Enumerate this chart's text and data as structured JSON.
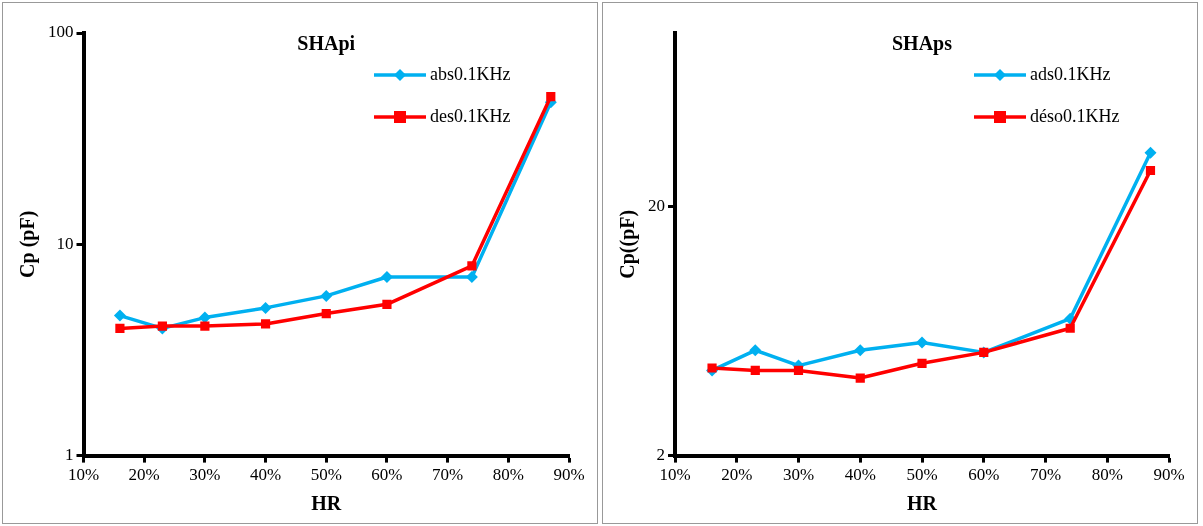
{
  "chart_data": [
    {
      "type": "line",
      "title": "SHApi",
      "xlabel": "HR",
      "ylabel": "Cp (pF)",
      "log": "y",
      "legend": "top right",
      "grid": false,
      "x": [
        16,
        23,
        30,
        40,
        50,
        60,
        74,
        87
      ],
      "xlim": [
        10,
        90
      ],
      "xticks": [
        {
          "value": 10,
          "label": "10%"
        },
        {
          "value": 20,
          "label": "20%"
        },
        {
          "value": 30,
          "label": "30%"
        },
        {
          "value": 40,
          "label": "40%"
        },
        {
          "value": 50,
          "label": "50%"
        },
        {
          "value": 60,
          "label": "60%"
        },
        {
          "value": 70,
          "label": "70%"
        },
        {
          "value": 80,
          "label": "80%"
        },
        {
          "value": 90,
          "label": "90%"
        }
      ],
      "ylim": [
        1,
        100
      ],
      "yticks": [
        1,
        10,
        100
      ],
      "series": [
        {
          "name": "abs0.1KHz",
          "color": "#00b0f0",
          "marker": "diamond",
          "values": [
            4.6,
            4.0,
            4.5,
            5.0,
            5.7,
            7.0,
            7.0,
            47
          ]
        },
        {
          "name": "des0.1KHz",
          "color": "#ff0000",
          "marker": "square",
          "values": [
            4.0,
            4.1,
            4.1,
            4.2,
            4.7,
            5.2,
            7.9,
            50
          ]
        }
      ]
    },
    {
      "type": "line",
      "title": "SHAps",
      "xlabel": "HR",
      "ylabel": "Cp((pF)",
      "log": "y",
      "legend": "top right",
      "grid": false,
      "x": [
        16,
        23,
        30,
        40,
        50,
        60,
        74,
        87
      ],
      "xlim": [
        10,
        90
      ],
      "xticks": [
        {
          "value": 10,
          "label": "10%"
        },
        {
          "value": 20,
          "label": "20%"
        },
        {
          "value": 30,
          "label": "30%"
        },
        {
          "value": 40,
          "label": "40%"
        },
        {
          "value": 50,
          "label": "50%"
        },
        {
          "value": 60,
          "label": "60%"
        },
        {
          "value": 70,
          "label": "70%"
        },
        {
          "value": 80,
          "label": "80%"
        },
        {
          "value": 90,
          "label": "90%"
        }
      ],
      "ylim": [
        2,
        100
      ],
      "yticks": [
        2,
        20
      ],
      "series": [
        {
          "name": "ads0.1KHz",
          "color": "#00b0f0",
          "marker": "diamond",
          "values": [
            4.4,
            5.3,
            4.6,
            5.3,
            5.7,
            5.2,
            7.1,
            33
          ]
        },
        {
          "name": "déso0.1KHz",
          "color": "#ff0000",
          "marker": "square",
          "values": [
            4.5,
            4.4,
            4.4,
            4.1,
            4.7,
            5.2,
            6.5,
            28
          ]
        }
      ]
    }
  ]
}
